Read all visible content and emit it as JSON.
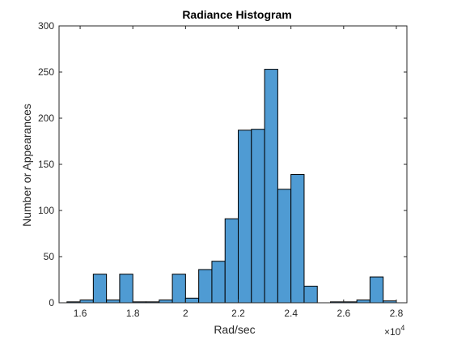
{
  "chart_data": {
    "type": "bar",
    "title": "Radiance Histogram",
    "xlabel": "Rad/sec",
    "ylabel": "Number or Appearances",
    "x_exponent_label": "×10",
    "x_exponent": "4",
    "xlim": [
      15200,
      28400
    ],
    "ylim": [
      0,
      300
    ],
    "x_ticks": [
      1.6,
      1.8,
      2,
      2.2,
      2.4,
      2.6,
      2.8
    ],
    "y_ticks": [
      0,
      50,
      100,
      150,
      200,
      250,
      300
    ],
    "bin_width": 500,
    "bins": [
      {
        "start": 15500,
        "end": 16000,
        "count": 1
      },
      {
        "start": 16000,
        "end": 16500,
        "count": 3
      },
      {
        "start": 16500,
        "end": 17000,
        "count": 31
      },
      {
        "start": 17000,
        "end": 17500,
        "count": 3
      },
      {
        "start": 17500,
        "end": 18000,
        "count": 31
      },
      {
        "start": 18000,
        "end": 18500,
        "count": 1
      },
      {
        "start": 18500,
        "end": 19000,
        "count": 1
      },
      {
        "start": 19000,
        "end": 19500,
        "count": 3
      },
      {
        "start": 19500,
        "end": 20000,
        "count": 31
      },
      {
        "start": 20000,
        "end": 20500,
        "count": 5
      },
      {
        "start": 20500,
        "end": 21000,
        "count": 36
      },
      {
        "start": 21000,
        "end": 21500,
        "count": 45
      },
      {
        "start": 21500,
        "end": 22000,
        "count": 91
      },
      {
        "start": 22000,
        "end": 22500,
        "count": 187
      },
      {
        "start": 22500,
        "end": 23000,
        "count": 188
      },
      {
        "start": 23000,
        "end": 23500,
        "count": 253
      },
      {
        "start": 23500,
        "end": 24000,
        "count": 123
      },
      {
        "start": 24000,
        "end": 24500,
        "count": 139
      },
      {
        "start": 24500,
        "end": 25000,
        "count": 18
      },
      {
        "start": 25000,
        "end": 25500,
        "count": 0
      },
      {
        "start": 25500,
        "end": 26000,
        "count": 1
      },
      {
        "start": 26000,
        "end": 26500,
        "count": 1
      },
      {
        "start": 26500,
        "end": 27000,
        "count": 3
      },
      {
        "start": 27000,
        "end": 27500,
        "count": 28
      },
      {
        "start": 27500,
        "end": 28000,
        "count": 2
      }
    ],
    "colors": {
      "bar_fill": "#4f9bd3",
      "bar_edge": "#000000",
      "axis": "#262626"
    },
    "grid": false,
    "legend": "none"
  }
}
